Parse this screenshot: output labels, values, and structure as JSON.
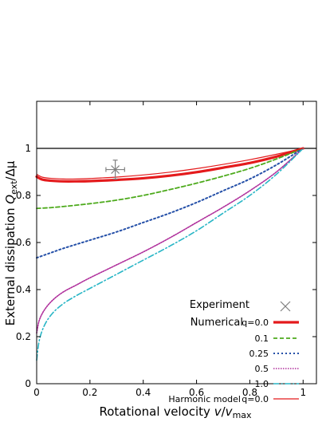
{
  "chart_data": {
    "type": "line",
    "xlabel_main": "Rotational velocity ",
    "xlabel_var": "v",
    "xlabel_sep": "/",
    "xlabel_var2": "v",
    "xlabel_sub": "max",
    "ylabel_main": "External dissipation ",
    "ylabel_var": "Q",
    "ylabel_sub": "ext",
    "ylabel_tail": "/Δμ",
    "xlim": [
      0,
      1.05
    ],
    "ylim": [
      0,
      1.2
    ],
    "x_ticks": [
      "0",
      "0.2",
      "0.4",
      "0.6",
      "0.8",
      "1"
    ],
    "y_ticks": [
      "0",
      "0.2",
      "0.4",
      "0.6",
      "0.8",
      "1"
    ],
    "reference_line": 1.0,
    "experiment": {
      "label": "Experiment",
      "x": 0.295,
      "y": 0.91,
      "x_err": 0.035,
      "y_err": 0.04,
      "color": "#808080"
    },
    "legend": {
      "numerical_label": "Numerical",
      "harmonic_label": "Harmonic model"
    },
    "series": [
      {
        "name": "q=0.0",
        "group": "Numerical",
        "color": "#e41a1c",
        "style": "solid-thick",
        "x": [
          0,
          0.02,
          0.05,
          0.1,
          0.15,
          0.2,
          0.3,
          0.4,
          0.5,
          0.6,
          0.7,
          0.8,
          0.9,
          1.0
        ],
        "y": [
          0.88,
          0.868,
          0.863,
          0.86,
          0.86,
          0.861,
          0.866,
          0.873,
          0.884,
          0.899,
          0.918,
          0.938,
          0.965,
          1.0
        ]
      },
      {
        "name": "0.1",
        "group": "Numerical",
        "color": "#4daa1c",
        "style": "dashed",
        "x": [
          0,
          0.05,
          0.1,
          0.2,
          0.3,
          0.4,
          0.5,
          0.6,
          0.7,
          0.8,
          0.9,
          1.0
        ],
        "y": [
          0.745,
          0.748,
          0.753,
          0.765,
          0.78,
          0.8,
          0.825,
          0.852,
          0.882,
          0.915,
          0.955,
          1.0
        ]
      },
      {
        "name": "0.25",
        "group": "Numerical",
        "color": "#2550a8",
        "style": "dotted",
        "x": [
          0,
          0.05,
          0.1,
          0.2,
          0.3,
          0.4,
          0.5,
          0.6,
          0.7,
          0.8,
          0.9,
          1.0
        ],
        "y": [
          0.535,
          0.555,
          0.575,
          0.61,
          0.645,
          0.685,
          0.725,
          0.77,
          0.82,
          0.87,
          0.93,
          1.0
        ]
      },
      {
        "name": "0.5",
        "group": "Numerical",
        "color": "#b0309c",
        "style": "dense-dotted",
        "x": [
          0,
          0.01,
          0.03,
          0.06,
          0.1,
          0.15,
          0.2,
          0.3,
          0.4,
          0.5,
          0.6,
          0.7,
          0.8,
          0.9,
          1.0
        ],
        "y": [
          0.215,
          0.27,
          0.315,
          0.355,
          0.39,
          0.42,
          0.45,
          0.505,
          0.56,
          0.62,
          0.685,
          0.75,
          0.82,
          0.9,
          1.0
        ]
      },
      {
        "name": "1.0",
        "group": "Numerical",
        "color": "#29b6c6",
        "style": "dash-dot",
        "x": [
          0,
          0.01,
          0.03,
          0.06,
          0.1,
          0.15,
          0.2,
          0.3,
          0.4,
          0.5,
          0.6,
          0.7,
          0.8,
          0.9,
          1.0
        ],
        "y": [
          0.1,
          0.185,
          0.25,
          0.3,
          0.34,
          0.375,
          0.405,
          0.465,
          0.525,
          0.585,
          0.65,
          0.725,
          0.8,
          0.89,
          1.0
        ]
      },
      {
        "name": "q=0.0",
        "group": "Harmonic model",
        "color": "#e41a1c",
        "style": "solid-thin",
        "x": [
          0,
          0.02,
          0.05,
          0.1,
          0.15,
          0.2,
          0.3,
          0.4,
          0.5,
          0.6,
          0.7,
          0.8,
          0.9,
          1.0
        ],
        "y": [
          0.89,
          0.878,
          0.873,
          0.87,
          0.87,
          0.872,
          0.878,
          0.887,
          0.899,
          0.914,
          0.932,
          0.952,
          0.975,
          1.0
        ]
      }
    ]
  }
}
